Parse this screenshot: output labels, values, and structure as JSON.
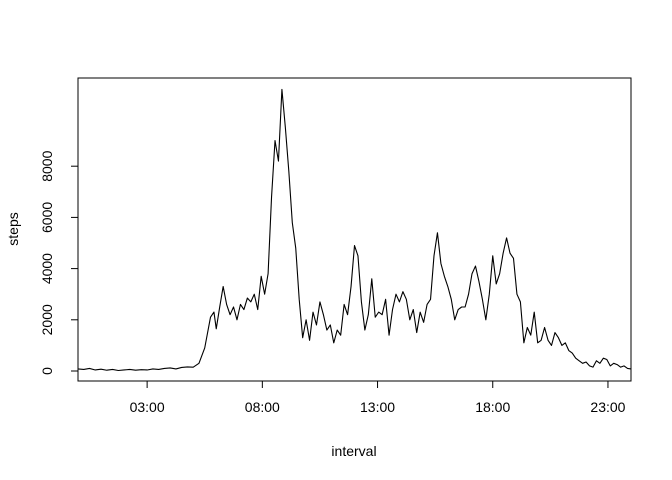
{
  "chart_data": {
    "type": "line",
    "xlabel": "interval",
    "ylabel": "steps",
    "x_ticks": [
      "03:00",
      "08:00",
      "13:00",
      "18:00",
      "23:00"
    ],
    "y_ticks": [
      0,
      2000,
      4000,
      6000,
      8000
    ],
    "xlim": [
      0,
      24
    ],
    "ylim": [
      0,
      10500
    ],
    "grid": false,
    "series": [
      {
        "x": [
          0.0,
          0.25,
          0.5,
          0.75,
          1.0,
          1.25,
          1.5,
          1.75,
          2.0,
          2.25,
          2.5,
          2.75,
          3.0,
          3.25,
          3.5,
          3.75,
          4.0,
          4.25,
          4.5,
          4.75,
          5.0,
          5.25,
          5.5,
          5.75,
          5.9,
          6.0,
          6.15,
          6.3,
          6.45,
          6.6,
          6.75,
          6.9,
          7.05,
          7.2,
          7.35,
          7.5,
          7.65,
          7.8,
          7.95,
          8.1,
          8.25,
          8.4,
          8.55,
          8.7,
          8.85,
          9.0,
          9.15,
          9.3,
          9.45,
          9.6,
          9.75,
          9.9,
          10.05,
          10.2,
          10.35,
          10.5,
          10.65,
          10.8,
          10.95,
          11.1,
          11.25,
          11.4,
          11.55,
          11.7,
          11.85,
          12.0,
          12.15,
          12.3,
          12.45,
          12.6,
          12.75,
          12.9,
          13.05,
          13.2,
          13.35,
          13.5,
          13.65,
          13.8,
          13.95,
          14.1,
          14.25,
          14.4,
          14.55,
          14.7,
          14.85,
          15.0,
          15.15,
          15.3,
          15.45,
          15.6,
          15.75,
          15.9,
          16.05,
          16.2,
          16.35,
          16.5,
          16.65,
          16.8,
          16.95,
          17.1,
          17.25,
          17.4,
          17.55,
          17.7,
          17.85,
          18.0,
          18.15,
          18.3,
          18.45,
          18.6,
          18.75,
          18.9,
          19.05,
          19.2,
          19.35,
          19.5,
          19.65,
          19.8,
          19.95,
          20.1,
          20.25,
          20.4,
          20.55,
          20.7,
          20.85,
          21.0,
          21.15,
          21.3,
          21.45,
          21.6,
          21.75,
          21.9,
          22.05,
          22.2,
          22.35,
          22.5,
          22.65,
          22.8,
          22.95,
          23.1,
          23.25,
          23.4,
          23.55,
          23.7,
          23.85,
          24.0
        ],
        "values": [
          80,
          60,
          100,
          40,
          70,
          30,
          60,
          20,
          40,
          60,
          30,
          50,
          40,
          80,
          60,
          100,
          120,
          80,
          140,
          160,
          150,
          300,
          900,
          2100,
          2300,
          1650,
          2500,
          3300,
          2600,
          2200,
          2500,
          2000,
          2600,
          2400,
          2850,
          2700,
          3000,
          2400,
          3700,
          3000,
          3800,
          6800,
          9000,
          8200,
          11000,
          9500,
          7800,
          5800,
          4800,
          2800,
          1300,
          2000,
          1200,
          2300,
          1800,
          2700,
          2200,
          1600,
          1800,
          1100,
          1600,
          1400,
          2600,
          2200,
          3300,
          4900,
          4500,
          2700,
          1600,
          2200,
          3600,
          2100,
          2300,
          2200,
          2800,
          1400,
          2400,
          3000,
          2700,
          3100,
          2800,
          2000,
          2400,
          1500,
          2300,
          1900,
          2600,
          2800,
          4500,
          5400,
          4200,
          3700,
          3300,
          2800,
          2000,
          2400,
          2500,
          2500,
          3000,
          3800,
          4100,
          3500,
          2800,
          2000,
          3000,
          4500,
          3400,
          3800,
          4600,
          5200,
          4600,
          4400,
          3000,
          2700,
          1100,
          1700,
          1400,
          2300,
          1100,
          1200,
          1700,
          1200,
          1000,
          1500,
          1300,
          1000,
          1100,
          800,
          700,
          500,
          400,
          300,
          350,
          200,
          150,
          400,
          300,
          500,
          450,
          200,
          300,
          250,
          150,
          200,
          100,
          80
        ]
      }
    ]
  }
}
